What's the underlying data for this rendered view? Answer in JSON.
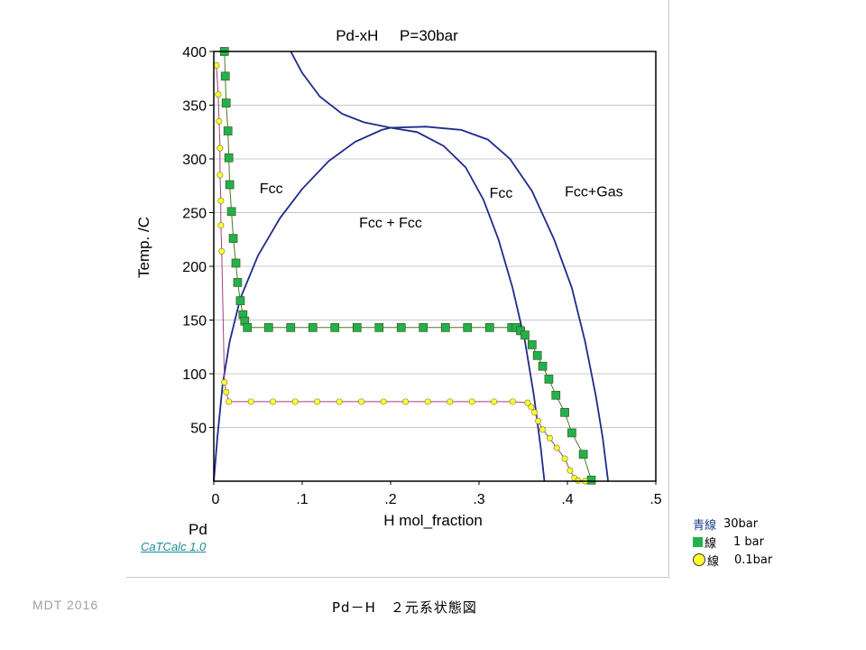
{
  "chart_data": {
    "type": "line",
    "title": "Pd-xH     P=30bar",
    "xlabel": "H mol_fraction",
    "ylabel": "Temp.  /C",
    "x_origin_label": "Pd",
    "xlim": [
      0,
      0.5
    ],
    "ylim": [
      0,
      400
    ],
    "xticks": [
      "0",
      ".1",
      ".2",
      ".3",
      ".4",
      ".5"
    ],
    "yticks": [
      "50",
      "100",
      "150",
      "200",
      "250",
      "300",
      "350",
      "400"
    ],
    "grid": true,
    "phase_labels": [
      {
        "text": "Fcc",
        "x": 0.065,
        "y": 268
      },
      {
        "text": "Fcc + Fcc",
        "x": 0.2,
        "y": 236
      },
      {
        "text": "Fcc",
        "x": 0.325,
        "y": 264
      },
      {
        "text": "Fcc+Gas",
        "x": 0.43,
        "y": 265
      }
    ],
    "series": [
      {
        "name": "30bar",
        "color": "#1f2a8c",
        "marker": "none",
        "curves": [
          [
            [
              0.0,
              0
            ],
            [
              0.004,
              40
            ],
            [
              0.01,
              90
            ],
            [
              0.018,
              130
            ],
            [
              0.03,
              170
            ],
            [
              0.05,
              210
            ],
            [
              0.075,
              245
            ],
            [
              0.1,
              272
            ],
            [
              0.13,
              298
            ],
            [
              0.16,
              316
            ],
            [
              0.19,
              327
            ],
            [
              0.2,
              329
            ]
          ],
          [
            [
              0.2,
              329
            ],
            [
              0.23,
              325
            ],
            [
              0.26,
              312
            ],
            [
              0.285,
              292
            ],
            [
              0.305,
              262
            ],
            [
              0.322,
              225
            ],
            [
              0.338,
              180
            ],
            [
              0.352,
              130
            ],
            [
              0.362,
              80
            ],
            [
              0.37,
              30
            ],
            [
              0.374,
              0
            ]
          ],
          [
            [
              0.2,
              329
            ],
            [
              0.24,
              330
            ],
            [
              0.28,
              327
            ],
            [
              0.31,
              318
            ],
            [
              0.335,
              300
            ],
            [
              0.36,
              270
            ],
            [
              0.385,
              225
            ],
            [
              0.405,
              180
            ],
            [
              0.42,
              130
            ],
            [
              0.432,
              80
            ],
            [
              0.44,
              40
            ],
            [
              0.446,
              0
            ]
          ],
          [
            [
              0.087,
              400
            ],
            [
              0.1,
              380
            ],
            [
              0.12,
              358
            ],
            [
              0.145,
              342
            ],
            [
              0.17,
              334
            ],
            [
              0.2,
              329
            ]
          ]
        ]
      },
      {
        "name": "1 bar",
        "color": "#22b14c",
        "marker": "square",
        "curves": [
          [
            [
              0.012,
              400
            ],
            [
              0.013,
              377
            ],
            [
              0.014,
              352
            ],
            [
              0.016,
              326
            ],
            [
              0.017,
              301
            ],
            [
              0.018,
              276
            ],
            [
              0.02,
              251
            ],
            [
              0.022,
              226
            ],
            [
              0.025,
              203
            ],
            [
              0.027,
              185
            ],
            [
              0.03,
              168
            ],
            [
              0.033,
              155
            ],
            [
              0.035,
              149
            ],
            [
              0.038,
              143
            ],
            [
              0.062,
              143
            ],
            [
              0.087,
              143
            ],
            [
              0.112,
              143
            ],
            [
              0.137,
              143
            ],
            [
              0.162,
              143
            ],
            [
              0.187,
              143
            ],
            [
              0.212,
              143
            ],
            [
              0.237,
              143
            ],
            [
              0.262,
              143
            ],
            [
              0.287,
              143
            ],
            [
              0.312,
              143
            ],
            [
              0.337,
              143
            ],
            [
              0.342,
              143
            ],
            [
              0.347,
              140
            ],
            [
              0.352,
              136
            ],
            [
              0.36,
              127
            ],
            [
              0.366,
              117
            ],
            [
              0.372,
              107
            ],
            [
              0.379,
              95
            ],
            [
              0.387,
              80
            ],
            [
              0.397,
              64
            ],
            [
              0.405,
              45
            ],
            [
              0.418,
              25
            ],
            [
              0.427,
              1
            ]
          ]
        ]
      },
      {
        "name": "0.1bar",
        "color": "#ffff33",
        "marker": "circle",
        "curves": [
          [
            [
              0.003,
              387
            ],
            [
              0.005,
              360
            ],
            [
              0.006,
              335
            ],
            [
              0.007,
              310
            ],
            [
              0.007,
              285
            ],
            [
              0.008,
              261
            ],
            [
              0.008,
              238
            ],
            [
              0.009,
              214
            ],
            [
              0.012,
              92
            ],
            [
              0.014,
              83
            ],
            [
              0.017,
              74
            ],
            [
              0.042,
              74
            ],
            [
              0.067,
              74
            ],
            [
              0.092,
              74
            ],
            [
              0.117,
              74
            ],
            [
              0.142,
              74
            ],
            [
              0.167,
              74
            ],
            [
              0.192,
              74
            ],
            [
              0.217,
              74
            ],
            [
              0.242,
              74
            ],
            [
              0.267,
              74
            ],
            [
              0.292,
              74
            ],
            [
              0.317,
              74
            ],
            [
              0.338,
              74
            ],
            [
              0.355,
              73
            ],
            [
              0.359,
              69
            ],
            [
              0.363,
              64
            ],
            [
              0.367,
              56
            ],
            [
              0.372,
              48
            ],
            [
              0.38,
              40
            ],
            [
              0.388,
              31
            ],
            [
              0.397,
              21
            ],
            [
              0.403,
              10
            ],
            [
              0.408,
              3
            ],
            [
              0.412,
              0.5
            ],
            [
              0.42,
              0
            ]
          ]
        ]
      }
    ]
  },
  "legend": {
    "items": [
      {
        "key": "青線",
        "label": "30bar"
      },
      {
        "key": "線",
        "label": "1 bar"
      },
      {
        "key": "線",
        "label": "0.1bar"
      }
    ]
  },
  "credits": {
    "software": "CaTCalc 1.0",
    "footer_left": "MDT   2016",
    "footer_title": "Pd－H　２元系状態図"
  }
}
